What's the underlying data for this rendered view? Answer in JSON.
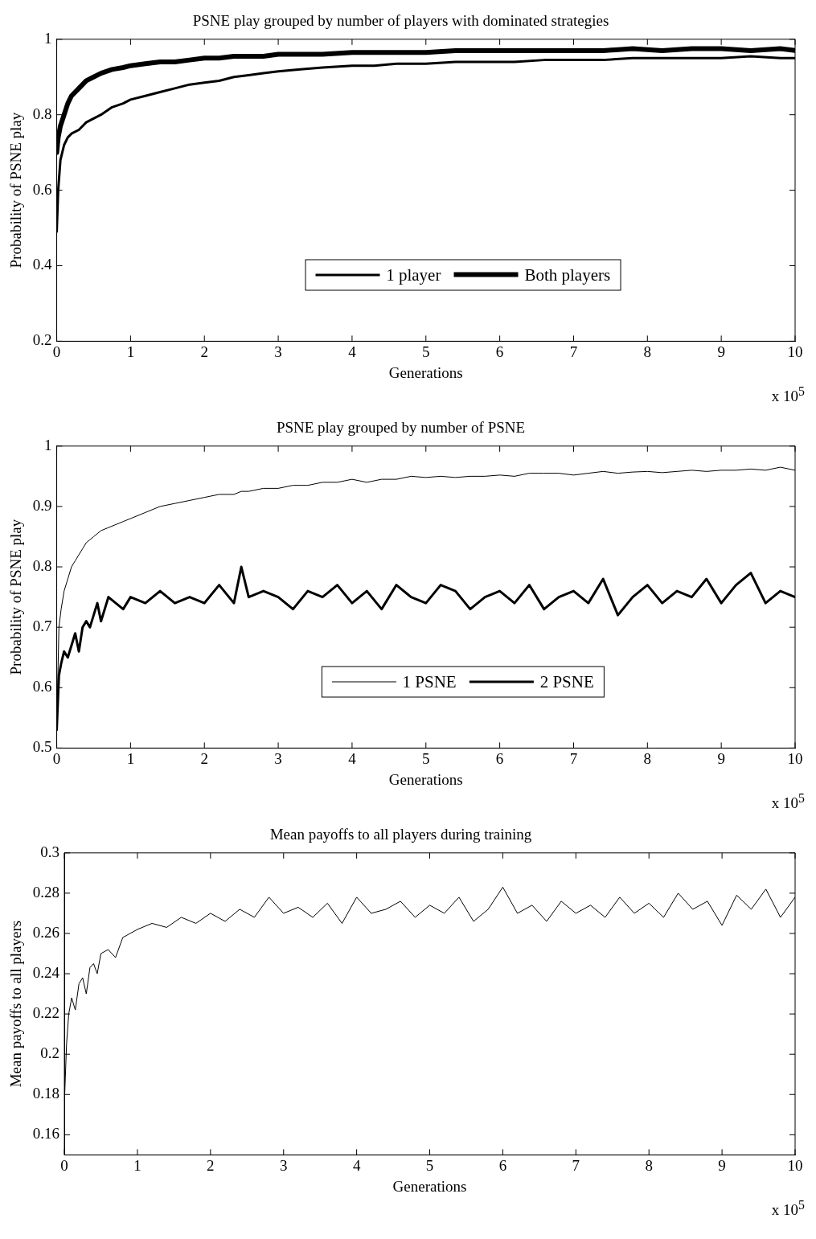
{
  "chart_data": [
    {
      "type": "line",
      "title": "PSNE play grouped by number of players with dominated strategies",
      "xlabel": "Generations",
      "ylabel": "Probability of PSNE play",
      "annotations": [
        "x 10$^{5}$"
      ],
      "xlim": [
        0,
        10
      ],
      "xticks": [
        0,
        1,
        2,
        3,
        4,
        5,
        6,
        7,
        8,
        9,
        10
      ],
      "ylim": [
        0.2,
        1
      ],
      "yticks": [
        0.2,
        0.4,
        0.6,
        0.8,
        1
      ],
      "grid": false,
      "legend": "bottom",
      "marker": "none",
      "line_style": "solid",
      "x": [
        0,
        0.02,
        0.05,
        0.1,
        0.15,
        0.2,
        0.3,
        0.4,
        0.5,
        0.6,
        0.75,
        0.9,
        1,
        1.2,
        1.4,
        1.6,
        1.8,
        2,
        2.2,
        2.4,
        2.6,
        2.8,
        3,
        3.3,
        3.6,
        4,
        4.3,
        4.6,
        5,
        5.4,
        5.8,
        6.2,
        6.6,
        7,
        7.4,
        7.8,
        8.2,
        8.6,
        9,
        9.4,
        9.8,
        10
      ],
      "series": [
        {
          "name": "1 player",
          "color": "#000000",
          "values": [
            0.49,
            0.6,
            0.68,
            0.72,
            0.74,
            0.75,
            0.76,
            0.78,
            0.79,
            0.8,
            0.82,
            0.83,
            0.84,
            0.85,
            0.86,
            0.87,
            0.88,
            0.885,
            0.89,
            0.9,
            0.905,
            0.91,
            0.915,
            0.92,
            0.925,
            0.93,
            0.93,
            0.935,
            0.935,
            0.94,
            0.94,
            0.94,
            0.945,
            0.945,
            0.945,
            0.95,
            0.95,
            0.95,
            0.95,
            0.955,
            0.95,
            0.95
          ]
        },
        {
          "name": "Both players",
          "color": "#000000",
          "values": [
            0.7,
            0.74,
            0.77,
            0.8,
            0.83,
            0.85,
            0.87,
            0.89,
            0.9,
            0.91,
            0.92,
            0.925,
            0.93,
            0.935,
            0.94,
            0.94,
            0.945,
            0.95,
            0.95,
            0.955,
            0.955,
            0.955,
            0.96,
            0.96,
            0.96,
            0.965,
            0.965,
            0.965,
            0.965,
            0.97,
            0.97,
            0.97,
            0.97,
            0.97,
            0.97,
            0.975,
            0.97,
            0.975,
            0.975,
            0.97,
            0.975,
            0.97
          ]
        }
      ]
    },
    {
      "type": "line",
      "title": "PSNE play grouped by number of PSNE",
      "xlabel": "Generations",
      "ylabel": "Probability of PSNE play",
      "annotations": [
        "x 10$^{5}$"
      ],
      "xlim": [
        0,
        10
      ],
      "xticks": [
        0,
        1,
        2,
        3,
        4,
        5,
        6,
        7,
        8,
        9,
        10
      ],
      "ylim": [
        0.5,
        1
      ],
      "yticks": [
        0.5,
        0.6,
        0.7,
        0.8,
        0.9,
        1
      ],
      "grid": false,
      "legend": "bottom",
      "marker": "none",
      "line_style": "solid",
      "x": [
        0,
        0.03,
        0.06,
        0.1,
        0.15,
        0.2,
        0.25,
        0.3,
        0.35,
        0.4,
        0.45,
        0.5,
        0.55,
        0.6,
        0.7,
        0.8,
        0.9,
        1,
        1.2,
        1.4,
        1.6,
        1.8,
        2,
        2.2,
        2.4,
        2.5,
        2.6,
        2.8,
        3,
        3.2,
        3.4,
        3.6,
        3.8,
        4,
        4.2,
        4.4,
        4.6,
        4.8,
        5,
        5.2,
        5.4,
        5.6,
        5.8,
        6,
        6.2,
        6.4,
        6.6,
        6.8,
        7,
        7.2,
        7.4,
        7.6,
        7.8,
        8,
        8.2,
        8.4,
        8.6,
        8.8,
        9,
        9.2,
        9.4,
        9.6,
        9.8,
        10
      ],
      "series": [
        {
          "name": "1 PSNE",
          "color": "#000000",
          "values": [
            0.53,
            0.7,
            0.73,
            0.76,
            0.78,
            0.8,
            0.81,
            0.82,
            0.83,
            0.84,
            0.845,
            0.85,
            0.855,
            0.86,
            0.865,
            0.87,
            0.875,
            0.88,
            0.89,
            0.9,
            0.905,
            0.91,
            0.915,
            0.92,
            0.92,
            0.925,
            0.925,
            0.93,
            0.93,
            0.935,
            0.935,
            0.94,
            0.94,
            0.945,
            0.94,
            0.945,
            0.945,
            0.95,
            0.948,
            0.95,
            0.948,
            0.95,
            0.95,
            0.952,
            0.95,
            0.955,
            0.955,
            0.955,
            0.952,
            0.955,
            0.958,
            0.955,
            0.957,
            0.958,
            0.956,
            0.958,
            0.96,
            0.958,
            0.96,
            0.96,
            0.962,
            0.96,
            0.965,
            0.96
          ]
        },
        {
          "name": "2 PSNE",
          "color": "#000000",
          "values": [
            0.53,
            0.62,
            0.64,
            0.66,
            0.65,
            0.67,
            0.69,
            0.66,
            0.7,
            0.71,
            0.7,
            0.72,
            0.74,
            0.71,
            0.75,
            0.74,
            0.73,
            0.75,
            0.74,
            0.76,
            0.74,
            0.75,
            0.74,
            0.77,
            0.74,
            0.8,
            0.75,
            0.76,
            0.75,
            0.73,
            0.76,
            0.75,
            0.77,
            0.74,
            0.76,
            0.73,
            0.77,
            0.75,
            0.74,
            0.77,
            0.76,
            0.73,
            0.75,
            0.76,
            0.74,
            0.77,
            0.73,
            0.75,
            0.76,
            0.74,
            0.78,
            0.72,
            0.75,
            0.77,
            0.74,
            0.76,
            0.75,
            0.78,
            0.74,
            0.77,
            0.79,
            0.74,
            0.76,
            0.75
          ]
        }
      ]
    },
    {
      "type": "line",
      "title": "Mean payoffs to all players during training",
      "xlabel": "Generations",
      "ylabel": "Mean payoffs to all players",
      "annotations": [
        "x 10$^{5}$"
      ],
      "xlim": [
        0,
        10
      ],
      "xticks": [
        0,
        1,
        2,
        3,
        4,
        5,
        6,
        7,
        8,
        9,
        10
      ],
      "ylim": [
        0.15,
        0.3
      ],
      "yticks": [
        0.16,
        0.18,
        0.2,
        0.22,
        0.24,
        0.26,
        0.28,
        0.3
      ],
      "grid": false,
      "legend": false,
      "marker": "none",
      "line_style": "solid",
      "x": [
        0,
        0.03,
        0.06,
        0.1,
        0.15,
        0.2,
        0.25,
        0.3,
        0.35,
        0.4,
        0.45,
        0.5,
        0.6,
        0.7,
        0.8,
        0.9,
        1,
        1.2,
        1.4,
        1.6,
        1.8,
        2,
        2.2,
        2.4,
        2.6,
        2.8,
        3,
        3.2,
        3.4,
        3.6,
        3.8,
        4,
        4.2,
        4.4,
        4.6,
        4.8,
        5,
        5.2,
        5.4,
        5.6,
        5.8,
        6,
        6.2,
        6.4,
        6.6,
        6.8,
        7,
        7.2,
        7.4,
        7.6,
        7.8,
        8,
        8.2,
        8.4,
        8.6,
        8.8,
        9,
        9.2,
        9.4,
        9.6,
        9.8,
        10
      ],
      "series": [
        {
          "color": "#000000",
          "values": [
            0.175,
            0.205,
            0.22,
            0.228,
            0.222,
            0.235,
            0.238,
            0.23,
            0.243,
            0.245,
            0.24,
            0.25,
            0.252,
            0.248,
            0.258,
            0.26,
            0.262,
            0.265,
            0.263,
            0.268,
            0.265,
            0.27,
            0.266,
            0.272,
            0.268,
            0.278,
            0.27,
            0.273,
            0.268,
            0.275,
            0.265,
            0.278,
            0.27,
            0.272,
            0.276,
            0.268,
            0.274,
            0.27,
            0.278,
            0.266,
            0.272,
            0.283,
            0.27,
            0.274,
            0.266,
            0.276,
            0.27,
            0.274,
            0.268,
            0.278,
            0.27,
            0.275,
            0.268,
            0.28,
            0.272,
            0.276,
            0.264,
            0.279,
            0.272,
            0.282,
            0.268,
            0.278
          ]
        }
      ]
    }
  ]
}
